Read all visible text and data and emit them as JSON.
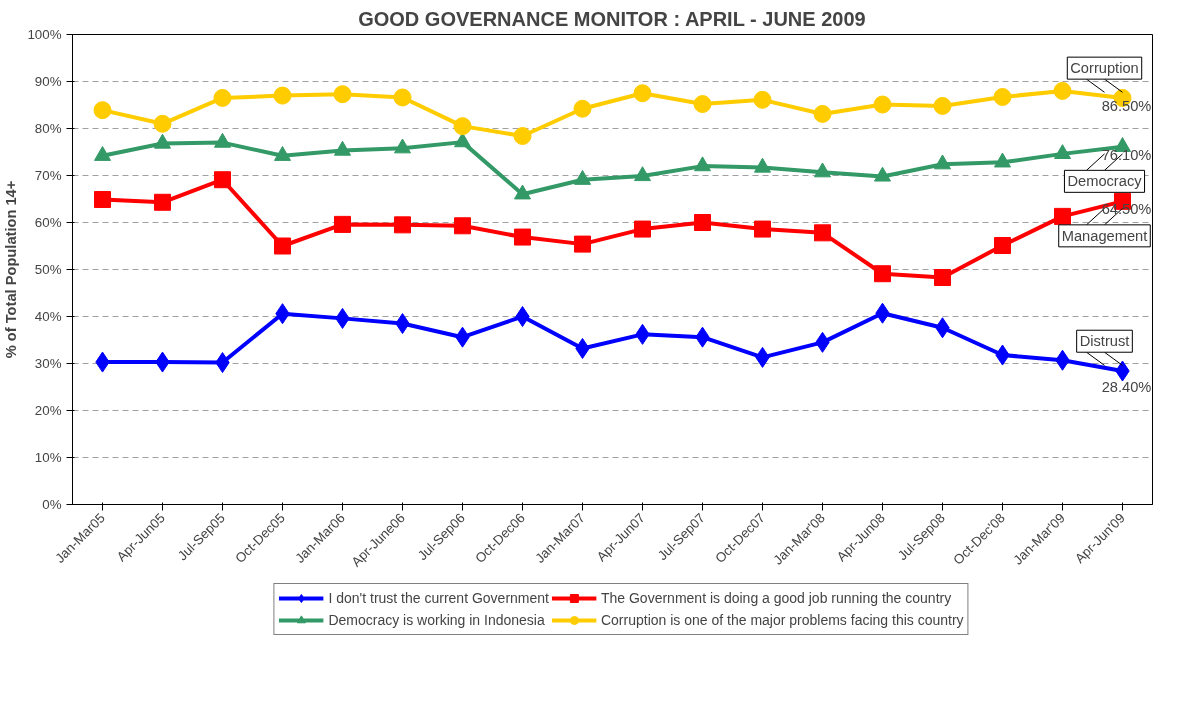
{
  "chart_data": {
    "type": "line",
    "title": "GOOD GOVERNANCE MONITOR : APRIL - JUNE 2009",
    "ylabel": "% of Total Population 14+",
    "categories": [
      "Jan-Mar05",
      "Apr-Jun05",
      "Jul-Sep05",
      "Oct-Dec05",
      "Jan-Mar06",
      "Apr-June06",
      "Jul-Sep06",
      "Oct-Dec06",
      "Jan-Mar07",
      "Apr-Jun07",
      "Jul-Sep07",
      "Oct-Dec07",
      "Jan-Mar'08",
      "Apr-Jun08",
      "Jul-Sep08",
      "Oct-Dec'08",
      "Jan-Mar'09",
      "Apr-Jun'09"
    ],
    "series": [
      {
        "name": "I don't trust the current Government",
        "color": "#0000ff",
        "marker": "diamond",
        "values": [
          30.3,
          30.3,
          30.2,
          40.6,
          39.6,
          38.5,
          35.6,
          40.0,
          33.2,
          36.2,
          35.6,
          31.3,
          34.5,
          40.7,
          37.6,
          31.8,
          30.7,
          28.4
        ],
        "value_labels": [
          null,
          null,
          null,
          null,
          null,
          null,
          null,
          null,
          null,
          null,
          null,
          null,
          null,
          null,
          null,
          null,
          null,
          "28.40%"
        ]
      },
      {
        "name": "The Government is doing a good job running the country",
        "color": "#ff0000",
        "marker": "square",
        "values": [
          64.9,
          64.3,
          69.1,
          55.0,
          59.6,
          59.5,
          59.3,
          56.9,
          55.4,
          58.6,
          60.0,
          58.6,
          57.8,
          49.1,
          48.3,
          55.1,
          61.3,
          64.5
        ],
        "value_labels": [
          null,
          null,
          null,
          null,
          null,
          null,
          null,
          null,
          null,
          null,
          null,
          null,
          null,
          null,
          null,
          null,
          null,
          "64.50%"
        ]
      },
      {
        "name": "Democracy is working in Indonesia",
        "color": "#339966",
        "marker": "triangle",
        "values": [
          74.2,
          76.8,
          77.0,
          74.2,
          75.3,
          75.8,
          77.1,
          66.0,
          69.1,
          69.9,
          72.0,
          71.7,
          70.7,
          69.8,
          72.4,
          72.8,
          74.6,
          76.1
        ],
        "value_labels": [
          null,
          null,
          null,
          null,
          null,
          null,
          null,
          null,
          null,
          null,
          null,
          null,
          null,
          null,
          null,
          null,
          null,
          "76.10%"
        ]
      },
      {
        "name": "Corruption is one of the major problems facing this country",
        "color": "#ffcc00",
        "marker": "circle",
        "values": [
          83.9,
          81.0,
          86.5,
          87.0,
          87.3,
          86.6,
          80.5,
          78.4,
          84.2,
          87.5,
          85.2,
          86.1,
          83.1,
          85.1,
          84.8,
          86.7,
          88.0,
          86.5
        ],
        "value_labels": [
          null,
          null,
          null,
          null,
          null,
          null,
          null,
          null,
          null,
          null,
          null,
          null,
          null,
          null,
          null,
          null,
          null,
          "86.50%"
        ]
      }
    ],
    "annotations": [
      {
        "text": "Corruption",
        "x": "Apr-Jun'09",
        "y": 86.5
      },
      {
        "text": "Democracy",
        "x": "Apr-Jun'09",
        "y": 76.1
      },
      {
        "text": "Management",
        "x": "Apr-Jun'09",
        "y": 64.5
      },
      {
        "text": "Distrust",
        "x": "Apr-Jun'09",
        "y": 28.4
      }
    ],
    "ylim": [
      0,
      100
    ],
    "yticks": [
      {
        "value": 0,
        "label": "0%"
      },
      {
        "value": 10,
        "label": "10%"
      },
      {
        "value": 20,
        "label": "20%"
      },
      {
        "value": 30,
        "label": "30%"
      },
      {
        "value": 40,
        "label": "40%"
      },
      {
        "value": 50,
        "label": "50%"
      },
      {
        "value": 60,
        "label": "60%"
      },
      {
        "value": 70,
        "label": "70%"
      },
      {
        "value": 80,
        "label": "80%"
      },
      {
        "value": 90,
        "label": "90%"
      },
      {
        "value": 100,
        "label": "100%"
      }
    ],
    "grid": "y",
    "legend": "bottom",
    "line_style": "solid"
  }
}
